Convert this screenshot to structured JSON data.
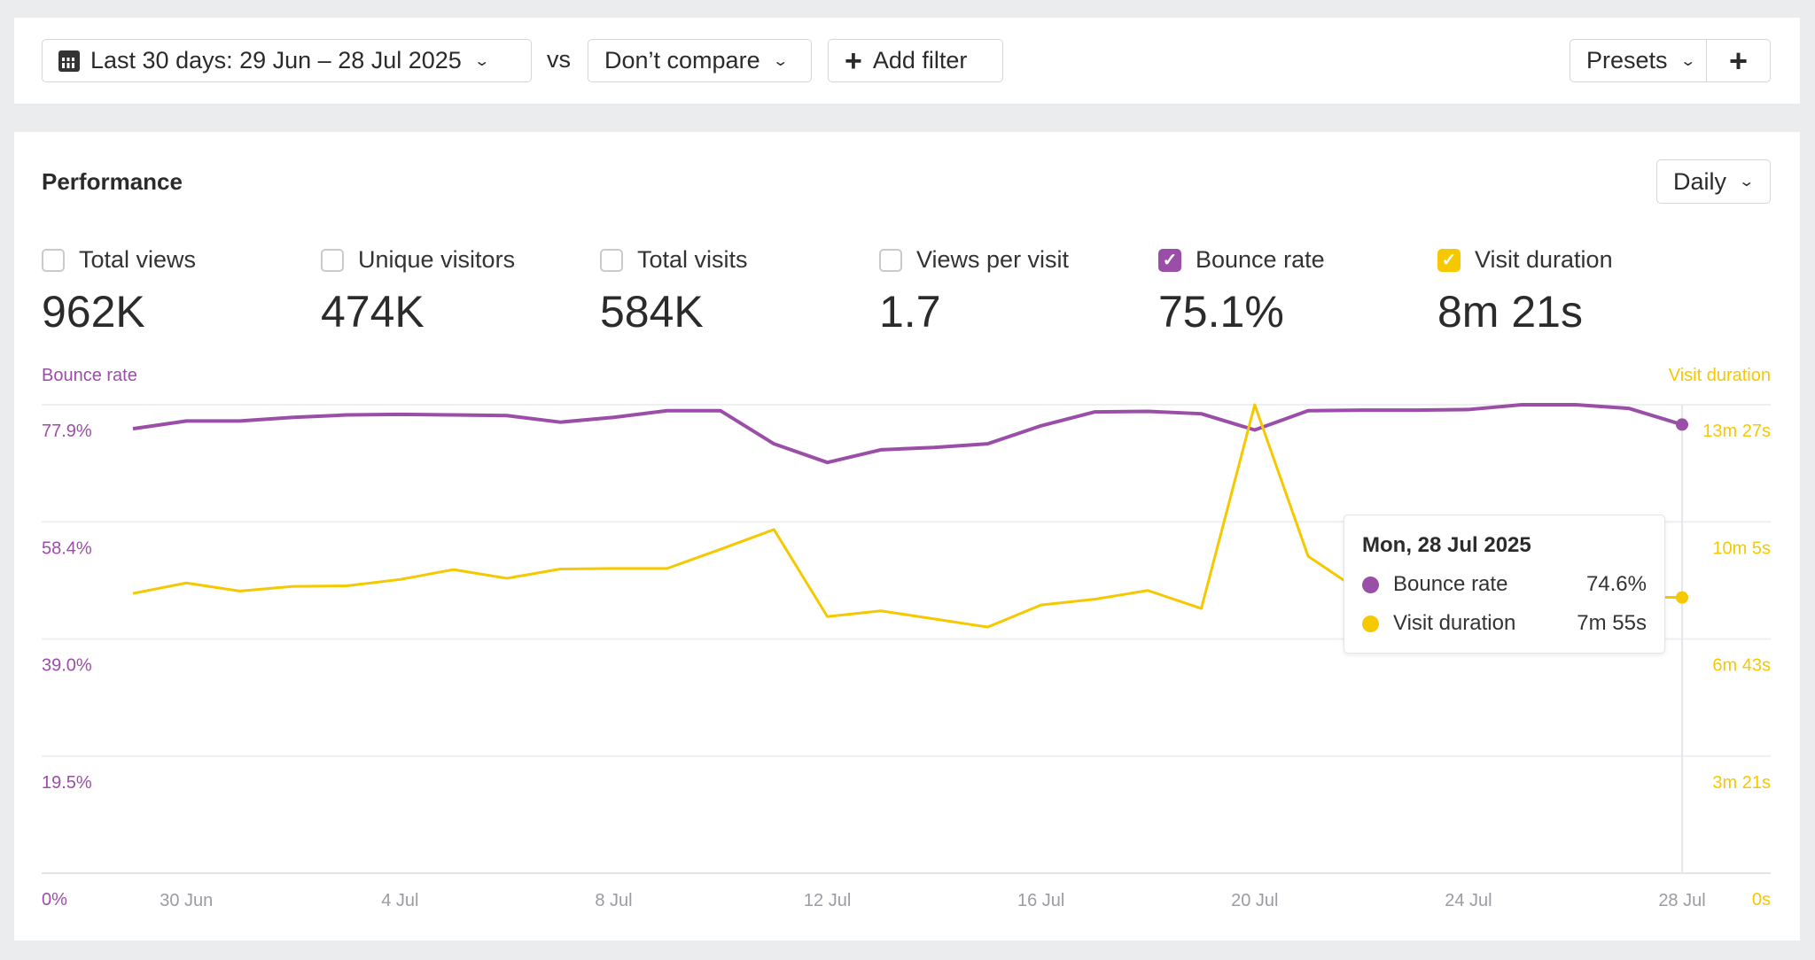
{
  "toolbar": {
    "date_range": "Last 30 days: 29 Jun – 28 Jul 2025",
    "vs": "vs",
    "compare": "Don’t compare",
    "add_filter": "Add filter",
    "presets": "Presets",
    "add": "+"
  },
  "performance": {
    "title": "Performance",
    "interval": "Daily",
    "metrics": [
      {
        "label": "Total views",
        "value": "962K",
        "checked": false
      },
      {
        "label": "Unique visitors",
        "value": "474K",
        "checked": false
      },
      {
        "label": "Total visits",
        "value": "584K",
        "checked": false
      },
      {
        "label": "Views per visit",
        "value": "1.7",
        "checked": false
      },
      {
        "label": "Bounce rate",
        "value": "75.1%",
        "checked": true,
        "color": "#9b4ea8"
      },
      {
        "label": "Visit duration",
        "value": "8m 21s",
        "checked": true,
        "color": "#f5c800"
      }
    ]
  },
  "chart_data": {
    "type": "line",
    "left_axis_title": "Bounce rate",
    "right_axis_title": "Visit duration",
    "left_ticks": [
      "77.9%",
      "58.4%",
      "39.0%",
      "19.5%",
      "0%"
    ],
    "right_ticks": [
      "13m 27s",
      "10m 5s",
      "6m 43s",
      "3m 21s",
      "0s"
    ],
    "left_ylim": [
      0,
      77.9
    ],
    "right_ylim_seconds": [
      0,
      807
    ],
    "grid": true,
    "x": [
      "29 Jun",
      "30 Jun",
      "1 Jul",
      "2 Jul",
      "3 Jul",
      "4 Jul",
      "5 Jul",
      "6 Jul",
      "7 Jul",
      "8 Jul",
      "9 Jul",
      "10 Jul",
      "11 Jul",
      "12 Jul",
      "13 Jul",
      "14 Jul",
      "15 Jul",
      "16 Jul",
      "17 Jul",
      "18 Jul",
      "19 Jul",
      "20 Jul",
      "21 Jul",
      "22 Jul",
      "23 Jul",
      "24 Jul",
      "25 Jul",
      "26 Jul",
      "27 Jul",
      "28 Jul"
    ],
    "x_tick_labels": [
      "30 Jun",
      "4 Jul",
      "8 Jul",
      "12 Jul",
      "16 Jul",
      "20 Jul",
      "24 Jul",
      "28 Jul"
    ],
    "series": [
      {
        "name": "Bounce rate",
        "axis": "left",
        "color": "#9b4ea8",
        "values": [
          73.9,
          75.2,
          75.2,
          75.8,
          76.2,
          76.3,
          76.2,
          76.1,
          75.0,
          75.8,
          76.9,
          76.9,
          71.4,
          68.3,
          70.4,
          70.8,
          71.4,
          74.4,
          76.7,
          76.8,
          76.4,
          73.7,
          76.9,
          77.0,
          77.0,
          77.1,
          77.9,
          77.9,
          77.3,
          74.6
        ]
      },
      {
        "name": "Visit duration",
        "axis": "right",
        "unit": "seconds",
        "color": "#f5c800",
        "values": [
          482,
          500,
          486,
          494,
          495,
          506,
          523,
          508,
          524,
          525,
          525,
          558,
          592,
          442,
          452,
          438,
          424,
          462,
          472,
          487,
          456,
          807,
          546,
          484,
          468,
          478,
          472,
          468,
          476,
          475
        ]
      }
    ],
    "tooltip": {
      "date": "Mon, 28 Jul 2025",
      "rows": [
        {
          "label": "Bounce rate",
          "value": "74.6%"
        },
        {
          "label": "Visit duration",
          "value": "7m 55s"
        }
      ]
    }
  }
}
